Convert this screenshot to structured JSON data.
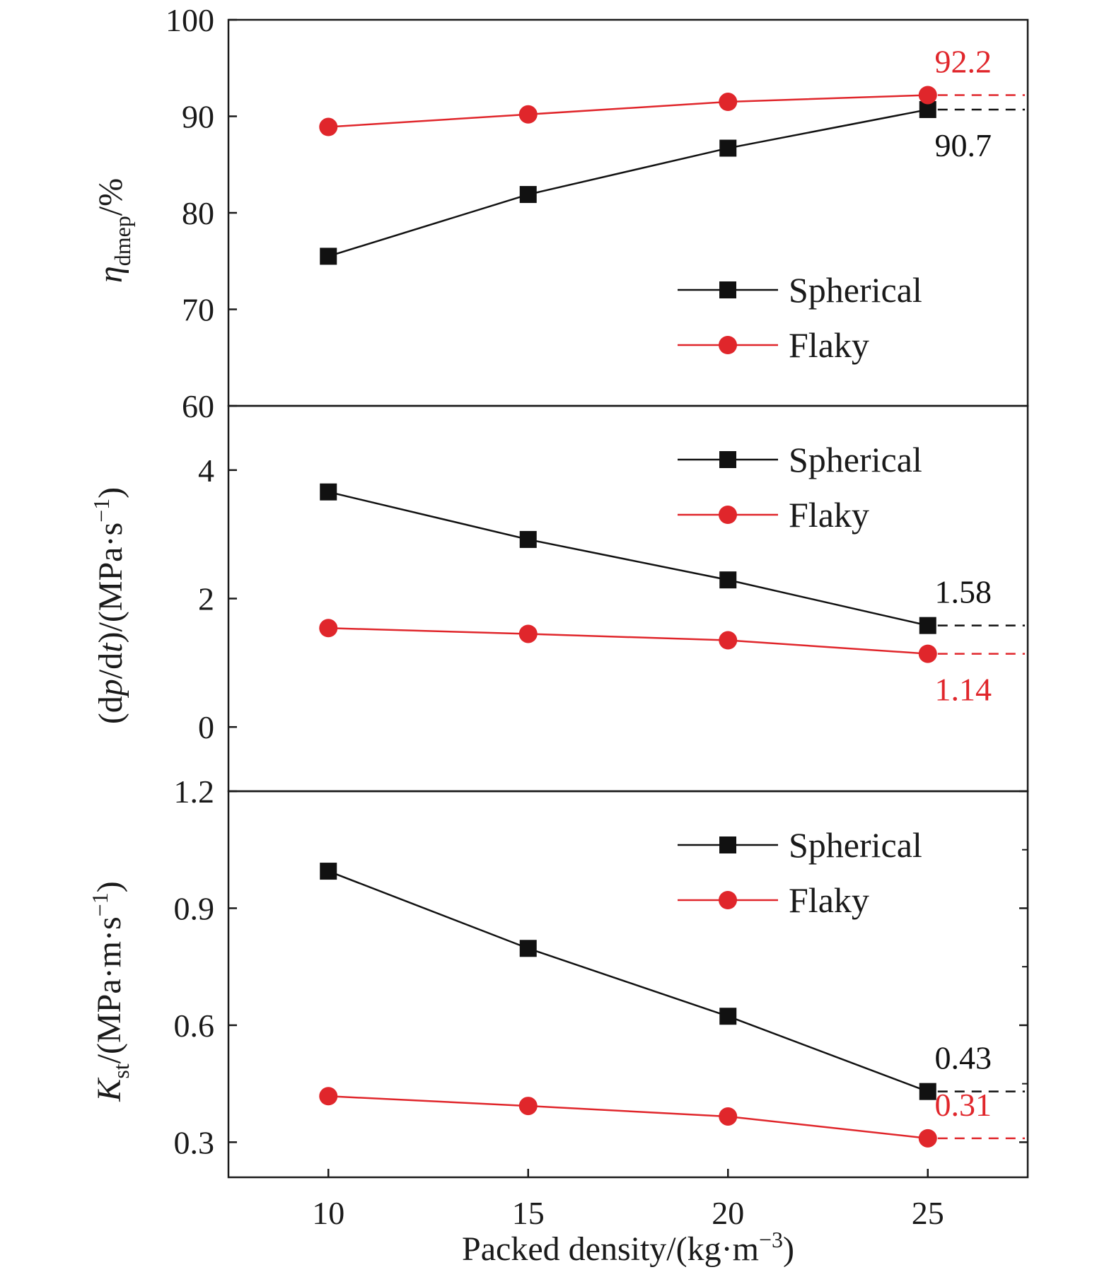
{
  "colors": {
    "spherical": "#111111",
    "flaky": "#e0262b",
    "axis": "#1a1a1a"
  },
  "chart_data": [
    {
      "type": "line",
      "x": [
        10,
        15,
        20,
        25
      ],
      "ylabel": "ηdmep/%",
      "ylim": [
        60,
        100
      ],
      "yticks": [
        60,
        70,
        80,
        90,
        100
      ],
      "ytick_labels": [
        "60",
        "70",
        "80",
        "90",
        "100"
      ],
      "legend": "right",
      "series": [
        {
          "name": "Spherical",
          "key": "spherical",
          "marker": "square",
          "values": [
            75.5,
            81.9,
            86.7,
            90.7
          ]
        },
        {
          "name": "Flaky",
          "key": "flaky",
          "marker": "circle",
          "values": [
            88.9,
            90.2,
            91.5,
            92.2
          ]
        }
      ],
      "annotations": [
        {
          "text": "92.2",
          "series": "flaky",
          "x": 25,
          "y": 92.2,
          "position": "above"
        },
        {
          "text": "90.7",
          "series": "spherical",
          "x": 25,
          "y": 90.7,
          "position": "below"
        }
      ]
    },
    {
      "type": "line",
      "x": [
        10,
        15,
        20,
        25
      ],
      "ylabel": "(dp/dt)/(MPa·s⁻¹)",
      "ylim": [
        -1,
        5
      ],
      "yticks": [
        0,
        2,
        4
      ],
      "ytick_labels": [
        "0",
        "2",
        "4"
      ],
      "legend": "top-right",
      "series": [
        {
          "name": "Spherical",
          "key": "spherical",
          "marker": "square",
          "values": [
            3.66,
            2.92,
            2.29,
            1.58
          ]
        },
        {
          "name": "Flaky",
          "key": "flaky",
          "marker": "circle",
          "values": [
            1.54,
            1.45,
            1.35,
            1.14
          ]
        }
      ],
      "annotations": [
        {
          "text": "1.58",
          "series": "spherical",
          "x": 25,
          "y": 1.58,
          "position": "above"
        },
        {
          "text": "1.14",
          "series": "flaky",
          "x": 25,
          "y": 1.14,
          "position": "below"
        }
      ]
    },
    {
      "type": "line",
      "x": [
        10,
        15,
        20,
        25
      ],
      "xlabel": "Packed density/(kg·m⁻³)",
      "xticks": [
        10,
        15,
        20,
        25
      ],
      "xtick_labels": [
        "10",
        "15",
        "20",
        "25"
      ],
      "xlim": [
        7.5,
        27.5
      ],
      "ylabel": "Kst/(MPa·m·s⁻¹)",
      "ylim": [
        0.21,
        1.2
      ],
      "yticks": [
        0.3,
        0.6,
        0.9,
        1.2
      ],
      "ytick_labels": [
        "0.3",
        "0.6",
        "0.9",
        "1.2"
      ],
      "legend": "top-right",
      "series": [
        {
          "name": "Spherical",
          "key": "spherical",
          "marker": "square",
          "values": [
            0.995,
            0.797,
            0.623,
            0.43
          ]
        },
        {
          "name": "Flaky",
          "key": "flaky",
          "marker": "circle",
          "values": [
            0.418,
            0.393,
            0.366,
            0.31
          ]
        }
      ],
      "annotations": [
        {
          "text": "0.43",
          "series": "spherical",
          "x": 25,
          "y": 0.43,
          "position": "above"
        },
        {
          "text": "0.31",
          "series": "flaky",
          "x": 25,
          "y": 0.31,
          "position": "above"
        }
      ]
    }
  ]
}
